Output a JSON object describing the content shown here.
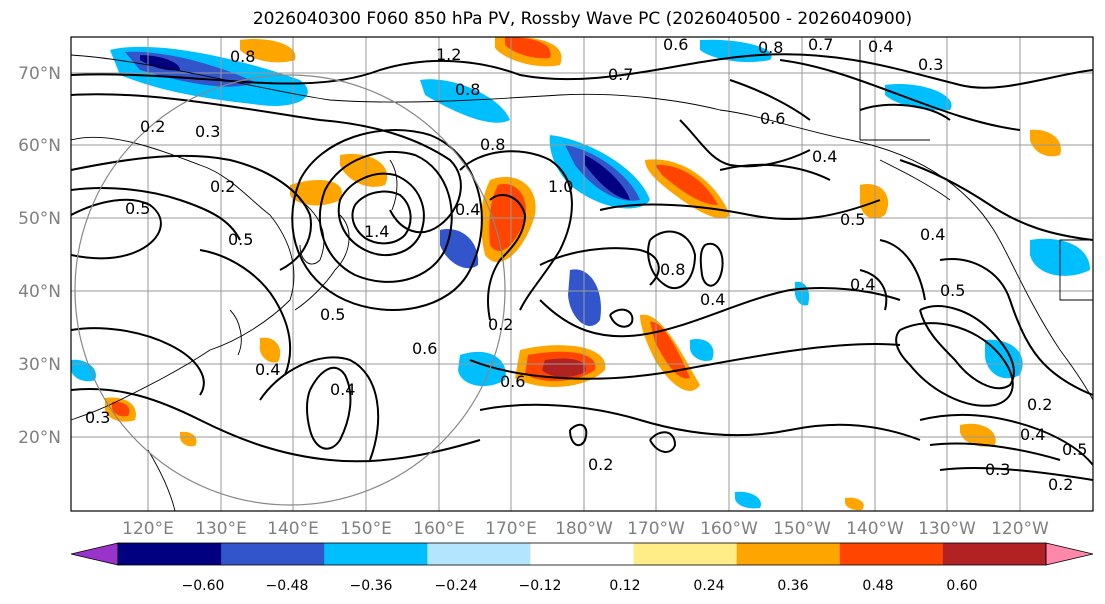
{
  "title": "2026040300 F060 850 hPa PV, Rossby Wave PC (2026040500 - 2026040900)",
  "map": {
    "lat_labels": [
      "70°N",
      "60°N",
      "50°N",
      "40°N",
      "30°N",
      "20°N"
    ],
    "lon_labels": [
      "120°E",
      "130°E",
      "140°E",
      "150°E",
      "160°E",
      "170°E",
      "180°W",
      "170°W",
      "160°W",
      "150°W",
      "140°W",
      "130°W",
      "120°W"
    ],
    "contour_labels": [
      "1.2",
      "0.6",
      "0.8",
      "0.7",
      "0.4",
      "0.3",
      "0.8",
      "0.8",
      "0.7",
      "0.6",
      "0.4",
      "0.3",
      "0.2",
      "0.2",
      "0.5",
      "0.5",
      "1.4",
      "0.4",
      "1.0",
      "0.8",
      "0.4",
      "0.4",
      "0.5",
      "0.4",
      "0.5",
      "0.2",
      "0.6",
      "0.6",
      "0.4",
      "0.4",
      "0.8",
      "0.5",
      "0.2",
      "0.4",
      "0.3",
      "0.2",
      "0.5",
      "0.3",
      "0.2"
    ]
  },
  "colorbar": {
    "ticks": [
      "−0.60",
      "−0.48",
      "−0.36",
      "−0.24",
      "−0.12",
      "0.12",
      "0.24",
      "0.36",
      "0.48",
      "0.60"
    ],
    "colors": [
      "#9933cc",
      "#000080",
      "#3355cc",
      "#00bfff",
      "#b3e5ff",
      "#ffffff",
      "#ffee88",
      "#ffa500",
      "#ff4500",
      "#b22222",
      "#ff88aa"
    ]
  }
}
